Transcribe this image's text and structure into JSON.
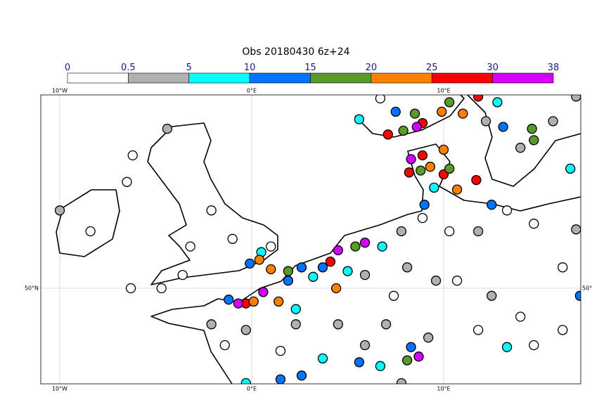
{
  "title": "Obs 20180430 6z+24",
  "colorbar": {
    "levels": [
      0,
      0.5,
      5,
      10,
      15,
      20,
      25,
      30,
      38
    ],
    "colors": [
      "#ffffff",
      "#b0b0b0",
      "#00ffff",
      "#0073ff",
      "#5a9a2a",
      "#ff8000",
      "#ff0000",
      "#d400ff"
    ]
  },
  "lon_ticks": [
    {
      "value": -10,
      "label": "10°W"
    },
    {
      "value": 0,
      "label": "0°E"
    },
    {
      "value": 10,
      "label": "10°E"
    }
  ],
  "lat_ticks": [
    {
      "value": 50,
      "label": "50°N"
    }
  ],
  "stations": [
    [
      6.7,
      60.0,
      0
    ],
    [
      7.5,
      59.3,
      12
    ],
    [
      8.5,
      59.2,
      18
    ],
    [
      8.9,
      58.7,
      28
    ],
    [
      8.6,
      58.5,
      33
    ],
    [
      7.1,
      58.1,
      27
    ],
    [
      7.9,
      58.3,
      17
    ],
    [
      9.9,
      59.3,
      22
    ],
    [
      10.3,
      59.8,
      17
    ],
    [
      11.0,
      59.2,
      22
    ],
    [
      11.8,
      60.1,
      27
    ],
    [
      12.8,
      59.8,
      7
    ],
    [
      12.2,
      58.8,
      3
    ],
    [
      13.1,
      58.5,
      12
    ],
    [
      14.6,
      58.4,
      18
    ],
    [
      15.7,
      58.8,
      2
    ],
    [
      16.9,
      60.1,
      2
    ],
    [
      5.6,
      58.9,
      8
    ],
    [
      8.9,
      57.0,
      26
    ],
    [
      8.3,
      56.8,
      32
    ],
    [
      10.0,
      57.3,
      23
    ],
    [
      8.2,
      56.1,
      27
    ],
    [
      8.8,
      56.2,
      17
    ],
    [
      10.0,
      56.0,
      26
    ],
    [
      9.3,
      56.4,
      24
    ],
    [
      10.3,
      56.3,
      19
    ],
    [
      9.5,
      55.3,
      7
    ],
    [
      9.0,
      54.4,
      13
    ],
    [
      10.7,
      55.2,
      23
    ],
    [
      11.7,
      55.7,
      26
    ],
    [
      12.5,
      54.4,
      12
    ],
    [
      14.7,
      57.8,
      16
    ],
    [
      16.6,
      56.3,
      7
    ],
    [
      14.0,
      57.4,
      3
    ],
    [
      -10.0,
      54.1,
      2
    ],
    [
      -4.4,
      58.4,
      2
    ],
    [
      -8.4,
      53.0,
      0
    ],
    [
      -6.2,
      57.0,
      0
    ],
    [
      -2.1,
      54.1,
      0
    ],
    [
      -3.2,
      52.2,
      0
    ],
    [
      -1.0,
      52.6,
      0
    ],
    [
      1.0,
      52.2,
      0
    ],
    [
      0.5,
      51.9,
      8
    ],
    [
      1.0,
      51.0,
      22
    ],
    [
      0.4,
      51.5,
      24
    ],
    [
      -0.1,
      51.3,
      12
    ],
    [
      -3.6,
      50.7,
      0
    ],
    [
      -6.3,
      50.0,
      0
    ],
    [
      -4.7,
      50.0,
      0
    ],
    [
      -6.5,
      55.6,
      0
    ],
    [
      4.5,
      52.0,
      34
    ],
    [
      4.1,
      51.4,
      28
    ],
    [
      5.4,
      52.2,
      17
    ],
    [
      5.9,
      52.4,
      32
    ],
    [
      6.8,
      52.2,
      6
    ],
    [
      1.9,
      50.9,
      18
    ],
    [
      2.6,
      51.1,
      13
    ],
    [
      3.2,
      50.6,
      8
    ],
    [
      3.7,
      51.1,
      11
    ],
    [
      5.0,
      50.9,
      7
    ],
    [
      5.9,
      50.7,
      3
    ],
    [
      4.4,
      50.0,
      22
    ],
    [
      1.9,
      50.4,
      14
    ],
    [
      0.6,
      49.8,
      31
    ],
    [
      -0.3,
      49.2,
      27
    ],
    [
      -0.7,
      49.2,
      33
    ],
    [
      0.1,
      49.3,
      22
    ],
    [
      -1.2,
      49.4,
      12
    ],
    [
      1.4,
      49.3,
      23
    ],
    [
      2.3,
      48.9,
      9
    ],
    [
      -2.1,
      48.1,
      2
    ],
    [
      -0.3,
      47.8,
      3
    ],
    [
      2.3,
      48.1,
      4
    ],
    [
      4.5,
      48.1,
      2
    ],
    [
      7.0,
      48.1,
      3
    ],
    [
      5.9,
      47.0,
      1
    ],
    [
      1.5,
      46.7,
      0
    ],
    [
      -1.4,
      47.0,
      0
    ],
    [
      3.7,
      46.3,
      6
    ],
    [
      2.6,
      45.4,
      12
    ],
    [
      -0.3,
      45.0,
      7
    ],
    [
      1.5,
      45.2,
      13
    ],
    [
      5.6,
      46.1,
      11
    ],
    [
      6.7,
      45.9,
      8
    ],
    [
      8.1,
      46.2,
      17
    ],
    [
      8.7,
      46.4,
      31
    ],
    [
      8.3,
      46.9,
      12
    ],
    [
      9.2,
      47.4,
      2
    ],
    [
      7.8,
      45.0,
      3
    ],
    [
      7.8,
      53.0,
      4
    ],
    [
      8.9,
      53.7,
      0
    ],
    [
      10.3,
      53.0,
      0
    ],
    [
      11.8,
      53.0,
      2
    ],
    [
      13.3,
      54.1,
      0
    ],
    [
      14.7,
      53.4,
      0
    ],
    [
      16.2,
      51.1,
      0
    ],
    [
      16.9,
      53.1,
      2
    ],
    [
      17.1,
      49.6,
      12
    ],
    [
      10.7,
      50.4,
      0
    ],
    [
      12.5,
      49.6,
      2
    ],
    [
      14.0,
      48.5,
      0
    ],
    [
      11.8,
      47.8,
      0
    ],
    [
      13.3,
      46.9,
      6
    ],
    [
      14.7,
      47.0,
      0
    ],
    [
      16.2,
      47.8,
      0
    ],
    [
      9.6,
      50.4,
      3
    ],
    [
      8.1,
      51.1,
      4
    ],
    [
      7.4,
      49.6,
      0
    ]
  ]
}
